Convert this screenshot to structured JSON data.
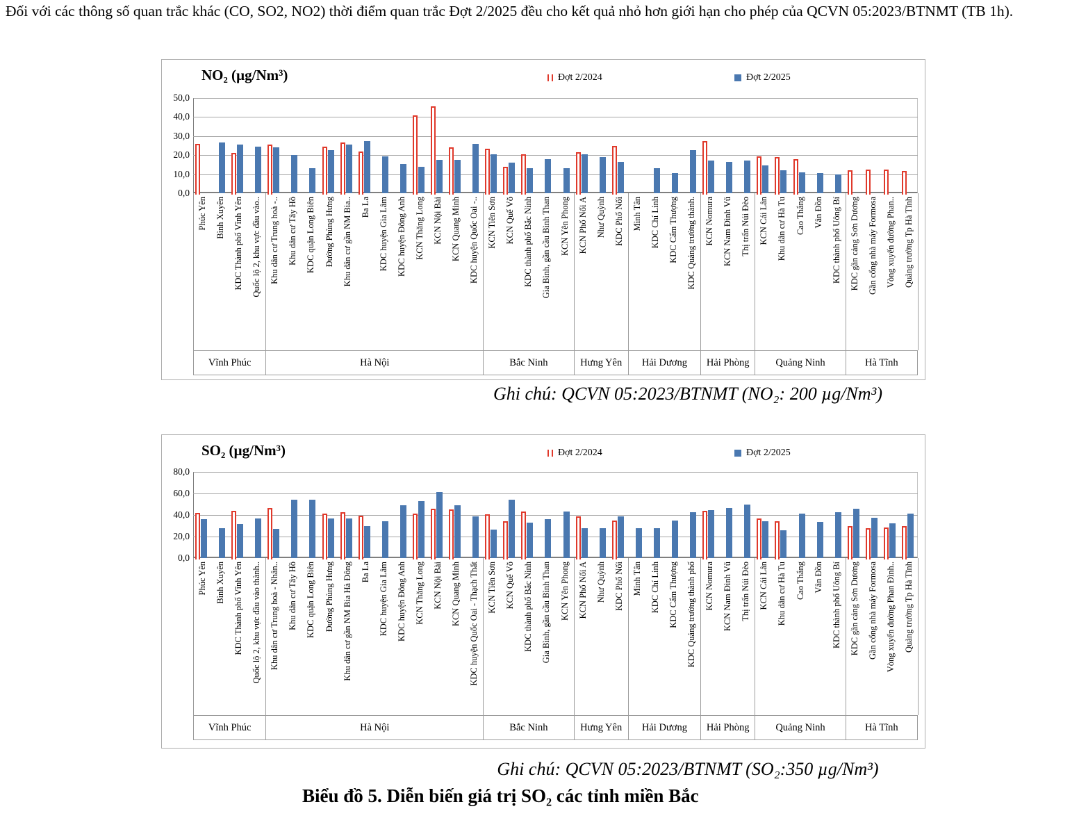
{
  "intro_text": "Đối với các thông số quan trắc khác (CO, SO2, NO2) thời điểm quan trắc Đợt 2/2025 đều cho kết quả nhỏ hơn giới hạn cho phép của QCVN 05:2023/BTNMT (TB 1h).",
  "figure_caption": "Biểu đồ 5. Diễn biến giá trị SO₂ các tỉnh miền Bắc",
  "colors": {
    "series_2024": "#e0392b",
    "series_2025": "#4a78b0",
    "gridline": "#a6a6a6",
    "axis": "#7f7f7f"
  },
  "chart_data": [
    {
      "type": "bar",
      "title": "NO₂ (µg/Nm³)",
      "note": "Ghi chú: QCVN 05:2023/BTNMT (NO₂: 200 µg/Nm³)",
      "ylim": [
        0,
        50
      ],
      "yticks": [
        "50,0",
        "40,0",
        "30,0",
        "20,0",
        "10,0",
        "0,0"
      ],
      "grid": true,
      "legend_position": "top",
      "categories": [
        "Phúc Yên",
        "Bình Xuyên",
        "KDC Thành phố Vĩnh Yên",
        "Quốc lộ 2, khu vực đầu vào..",
        "Khu dân cư Trung hoà -..",
        "Khu dân cư Tây Hồ",
        "KDC quận Long Biên",
        "Đường Phùng Hưng",
        "Khu dân cư gần NM Bia..",
        "Ba La",
        "KDC huyện Gia Lâm",
        "KDC huyện Đông Anh",
        "KCN Thăng Long",
        "KCN Nội Bài",
        "KCN Quang Minh",
        "KDC huyện Quốc Oai -..",
        "KCN Tiên Sơn",
        "KCN Quế Võ",
        "KDC thành phố Bắc Ninh",
        "Gia Bình, gần cầu Bình Than",
        "KCN Yên Phong",
        "KCN Phố Nối A",
        "Như Quỳnh",
        "KDC Phố Nối",
        "Minh Tân",
        "KDC Chí Linh",
        "KDC Cẩm Thượng",
        "KDC Quảng trường thành.",
        "KCN Nomura",
        "KCN Nam Đình Vũ",
        "Thị trấn Núi Đèo",
        "KCN Cái Lân",
        "Khu dân cư Hà Tu",
        "Cao Thắng",
        "Vân Đồn",
        "KDC thành phố Uông Bí",
        "KDC gần cảng Sơn Dương",
        "Gần cổng nhà máy Formosa",
        "Vòng xuyến đường Phan..",
        "Quảng trường Tp Hà Tĩnh"
      ],
      "series": [
        {
          "name": "Đợt 2/2024",
          "values": [
            26,
            null,
            21,
            null,
            25.5,
            null,
            null,
            24.5,
            26.5,
            22,
            null,
            null,
            41,
            45.5,
            24,
            null,
            23.5,
            14,
            20.5,
            null,
            null,
            21.5,
            null,
            25,
            null,
            null,
            null,
            null,
            27.5,
            null,
            null,
            19.5,
            19,
            18,
            null,
            null,
            12,
            12.5,
            12.5,
            11.5
          ]
        },
        {
          "name": "Đợt 2/2025",
          "values": [
            null,
            26.5,
            25.5,
            24.5,
            24,
            20,
            13,
            22.5,
            25.5,
            27.5,
            19.5,
            15.5,
            14,
            17.5,
            17.5,
            26,
            20.5,
            16,
            13,
            18,
            13,
            20.5,
            19,
            16.5,
            null,
            13,
            10.5,
            22.5,
            17,
            16.5,
            17,
            14.5,
            12,
            11,
            10.5,
            10,
            null,
            null,
            null,
            null
          ]
        }
      ],
      "province_groups": [
        {
          "name": "Vĩnh Phúc",
          "span": 4
        },
        {
          "name": "Hà Nội",
          "span": 12
        },
        {
          "name": "Bắc Ninh",
          "span": 5
        },
        {
          "name": "Hưng Yên",
          "span": 3
        },
        {
          "name": "Hải Dương",
          "span": 4
        },
        {
          "name": "Hải Phòng",
          "span": 3
        },
        {
          "name": "Quảng Ninh",
          "span": 5
        },
        {
          "name": "Hà Tĩnh",
          "span": 4
        }
      ]
    },
    {
      "type": "bar",
      "title": "SO₂ (µg/Nm³)",
      "note": "Ghi chú: QCVN 05:2023/BTNMT (SO₂:350 µg/Nm³)",
      "ylim": [
        0,
        80
      ],
      "yticks": [
        "80,0",
        "60,0",
        "40,0",
        "20,0",
        "0,0"
      ],
      "grid": true,
      "legend_position": "top",
      "categories": [
        "Phúc Yên",
        "Bình Xuyên",
        "KDC Thành phố Vĩnh Yên",
        "Quốc lộ 2, khu vực đầu vào thành..",
        "Khu dân cư Trung hoà - Nhân..",
        "Khu dân cư Tây Hồ",
        "KDC quận Long Biên",
        "Đường Phùng Hưng",
        "Khu dân cư gần NM Bia Hà Đông",
        "Ba La",
        "KDC huyện Gia Lâm",
        "KDC huyện Đông Anh",
        "KCN Thăng Long",
        "KCN Nội Bài",
        "KCN Quang Minh",
        "KDC huyện Quốc Oai - Thạch Thất",
        "KCN Tiên Sơn",
        "KCN Quế Võ",
        "KDC thành phố Bắc Ninh",
        "Gia Bình, gần cầu Bình Than",
        "KCN Yên Phong",
        "KCN Phố Nối A",
        "Như Quỳnh",
        "KDC Phố Nối",
        "Minh Tân",
        "KDC Chí Linh",
        "KDC Cẩm Thượng",
        "KDC Quảng trường thành phố",
        "KCN Nomura",
        "KCN Nam Đình Vũ",
        "Thị trấn Núi Đèo",
        "KCN Cái Lân",
        "Khu dân cư Hà Tu",
        "Cao Thắng",
        "Vân Đồn",
        "KDC thành phố Uông Bí",
        "KDC gần cảng Sơn Dương",
        "Gần cổng nhà máy Formosa",
        "Vòng xuyến đường Phan Đình..",
        "Quảng trường Tp Hà Tĩnh"
      ],
      "series": [
        {
          "name": "Đợt 2/2024",
          "values": [
            42,
            null,
            44,
            null,
            46.5,
            null,
            null,
            41,
            42.5,
            39.5,
            null,
            null,
            41.5,
            45.5,
            45,
            null,
            40.5,
            34,
            43.5,
            null,
            null,
            38.5,
            null,
            35,
            null,
            null,
            null,
            null,
            44,
            null,
            null,
            37,
            34.5,
            null,
            null,
            null,
            29.5,
            27.5,
            28.5,
            29.5
          ]
        },
        {
          "name": "Đợt 2/2025",
          "values": [
            36,
            27.5,
            31.5,
            36.5,
            27,
            54,
            54.5,
            37,
            37,
            30,
            34,
            49,
            53,
            61,
            49,
            38.5,
            26.5,
            54.5,
            33,
            36,
            43.5,
            28,
            27.5,
            39,
            28,
            27.5,
            35,
            42.5,
            44.5,
            46.5,
            50,
            34,
            25.5,
            41.5,
            33.5,
            42.5,
            45.5,
            37.5,
            32,
            41.5
          ]
        }
      ],
      "province_groups": [
        {
          "name": "Vĩnh Phúc",
          "span": 4
        },
        {
          "name": "Hà Nội",
          "span": 12
        },
        {
          "name": "Bắc Ninh",
          "span": 5
        },
        {
          "name": "Hưng Yên",
          "span": 3
        },
        {
          "name": "Hải Dương",
          "span": 4
        },
        {
          "name": "Hải Phòng",
          "span": 3
        },
        {
          "name": "Quảng Ninh",
          "span": 5
        },
        {
          "name": "Hà Tĩnh",
          "span": 4
        }
      ]
    }
  ]
}
